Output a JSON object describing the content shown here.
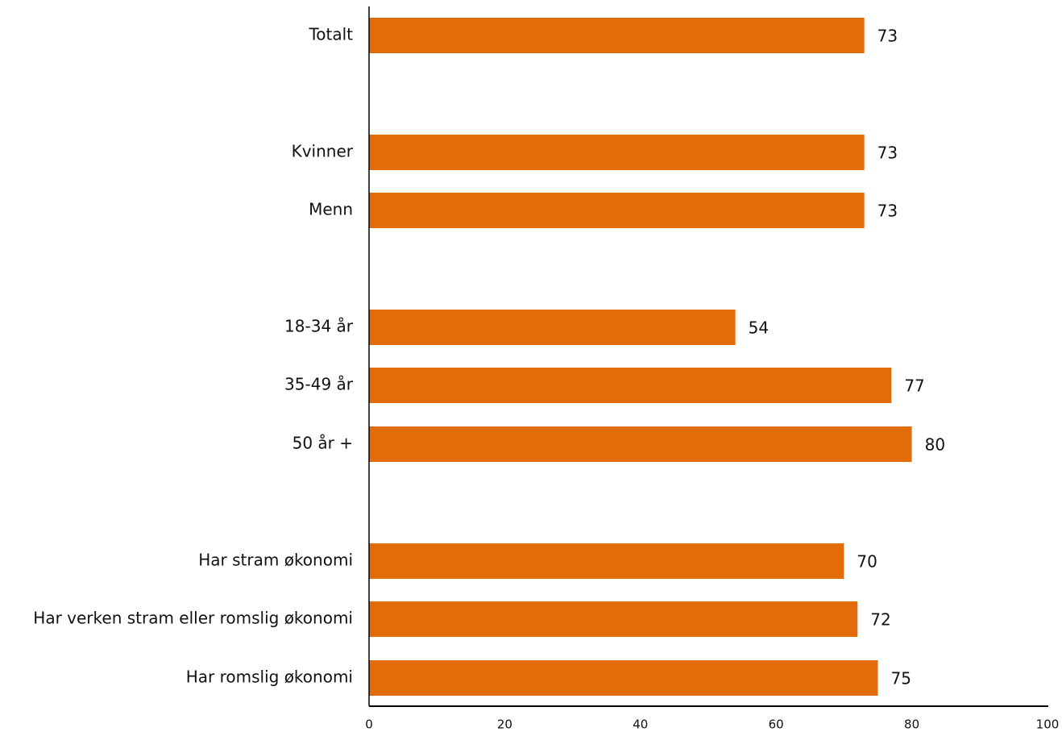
{
  "chart_data": {
    "type": "bar",
    "orientation": "horizontal",
    "title": "",
    "xlabel": "",
    "ylabel": "",
    "xlim": [
      0,
      100
    ],
    "ticks": [
      0,
      20,
      40,
      60,
      80,
      100
    ],
    "grid": false,
    "bar_color": "#E36C0A",
    "categories": [
      "Totalt",
      "Kvinner",
      "Menn",
      "18-34 år",
      "35-49 år",
      "50 år +",
      "Har stram økonomi",
      "Har verken stram eller romslig økonomi",
      "Har romslig økonomi"
    ],
    "values": [
      73,
      73,
      73,
      54,
      77,
      80,
      70,
      72,
      75
    ],
    "data_labels": [
      "73",
      "73",
      "73",
      "54",
      "77",
      "80",
      "70",
      "72",
      "75"
    ],
    "group_starts": [
      0,
      1,
      3,
      6
    ]
  }
}
